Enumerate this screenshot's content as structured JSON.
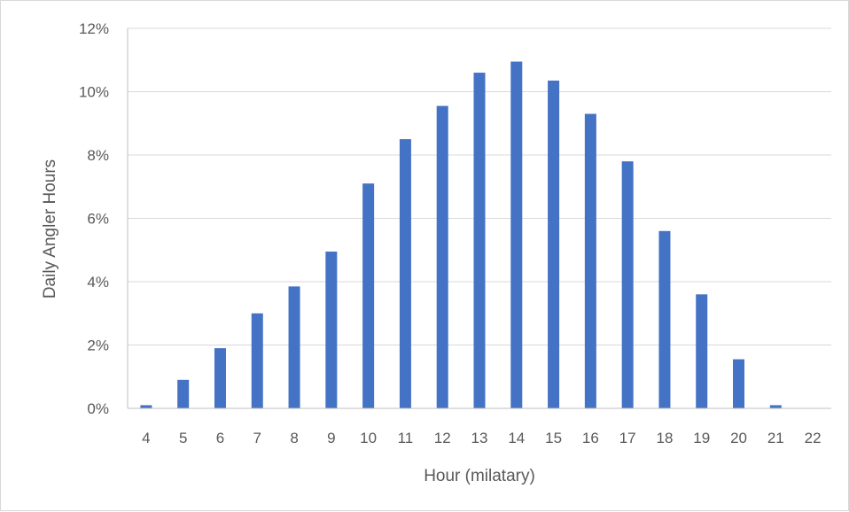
{
  "chart_data": {
    "type": "bar",
    "title": "",
    "xlabel": "Hour (milatary)",
    "ylabel": "Daily Angler Hours",
    "categories": [
      "4",
      "5",
      "6",
      "7",
      "8",
      "9",
      "10",
      "11",
      "12",
      "13",
      "14",
      "15",
      "16",
      "17",
      "18",
      "19",
      "20",
      "21",
      "22"
    ],
    "values": [
      0.1,
      0.9,
      1.9,
      3.0,
      3.85,
      4.95,
      7.1,
      8.5,
      9.55,
      10.6,
      10.95,
      10.35,
      9.3,
      7.8,
      5.6,
      3.6,
      1.55,
      0.1,
      0
    ],
    "value_unit": "%",
    "ylim": [
      0,
      12
    ],
    "yticks": [
      0,
      2,
      4,
      6,
      8,
      10,
      12
    ],
    "ytick_labels": [
      "0%",
      "2%",
      "4%",
      "6%",
      "8%",
      "10%",
      "12%"
    ],
    "grid": true,
    "legend": "none",
    "colors": {
      "bar": "#4472c4",
      "grid": "#d9d9d9",
      "axis": "#bfbfbf",
      "text": "#595959"
    }
  }
}
